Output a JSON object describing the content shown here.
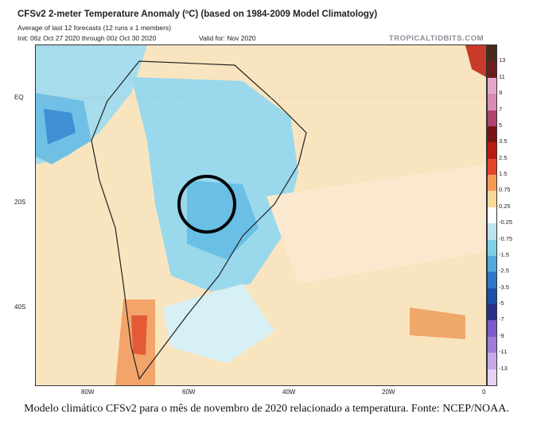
{
  "header": {
    "title": "CFSv2 2-meter Temperature Anomaly (ºC) (based on 1984-2009 Model Climatology)",
    "subtitle_line1": "Average of last 12 forecasts (12 runs x 1 members)",
    "subtitle_line2": "Init: 06z Oct 27 2020 through 00z Oct 30 2020",
    "valid": "Valid for: Nov 2020",
    "brand": "TROPICALTIDBITS.COM"
  },
  "axes": {
    "lat_labels": [
      "EQ",
      "20S",
      "40S"
    ],
    "lon_labels": [
      "80W",
      "60W",
      "40W",
      "20W",
      "0"
    ]
  },
  "colorbar": {
    "labels": [
      "13",
      "11",
      "9",
      "7",
      "5",
      "3.5",
      "2.5",
      "1.5",
      "0.75",
      "0.25",
      "-0.25",
      "-0.75",
      "-1.5",
      "-2.5",
      "-3.5",
      "-5",
      "-7",
      "-9",
      "-11",
      "-13"
    ],
    "colors": [
      "#4a2a1a",
      "#6b1e1e",
      "#e4a7c9",
      "#d98bb5",
      "#b0436f",
      "#7a1414",
      "#b81b16",
      "#e2452a",
      "#f49a52",
      "#fcd79a",
      "#ffffff",
      "#bde3ee",
      "#7fd0e6",
      "#52a9dc",
      "#2c78c8",
      "#1d4fa8",
      "#2b2f86",
      "#7c5ac8",
      "#a07cd8",
      "#c9a8e8",
      "#e6d2f3"
    ]
  },
  "caption": "Modelo climático CFSv2 para o mês de novembro de 2020 relacionado a temperatura. Fonte: NCEP/NOAA."
}
